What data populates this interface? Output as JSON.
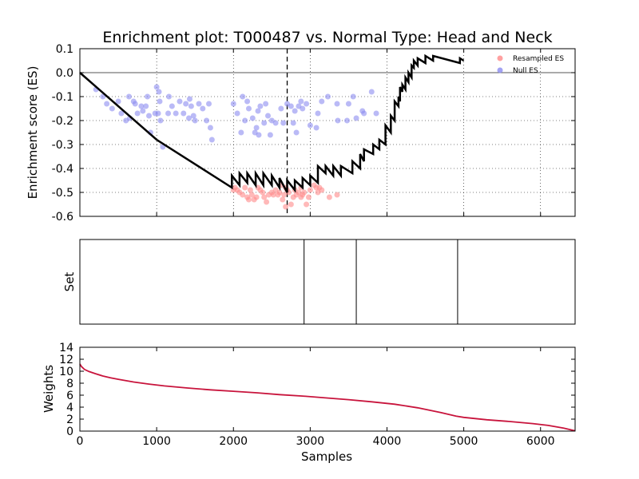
{
  "chart_data": [
    {
      "type": "line",
      "title": "Enrichment plot: T000487 vs. Normal Type: Head and Neck",
      "xlabel": "",
      "ylabel": "Enrichment score (ES)",
      "xlim": [
        0,
        6450
      ],
      "ylim": [
        -0.6,
        0.1
      ],
      "xticks": [
        1000,
        2000,
        3000,
        4000,
        5000,
        6000
      ],
      "yticks": [
        0.1,
        0.0,
        -0.1,
        -0.2,
        -0.3,
        -0.4,
        -0.5,
        -0.6
      ],
      "grid": true,
      "legend_position": "top-right",
      "legend": [
        {
          "label": "Resampled ES",
          "color": "#ff8a8a"
        },
        {
          "label": "Null ES",
          "color": "#8c8cf0"
        }
      ],
      "zero_line": 0.0,
      "max_deviation_x": 2700,
      "es_curve": {
        "x": [
          0,
          1000,
          1980,
          1980,
          2080,
          2080,
          2180,
          2180,
          2290,
          2290,
          2390,
          2390,
          2500,
          2500,
          2600,
          2600,
          2700,
          2700,
          2800,
          2800,
          2900,
          2900,
          3000,
          3000,
          3100,
          3100,
          3200,
          3200,
          3300,
          3300,
          3400,
          3400,
          3550,
          3550,
          3650,
          3650,
          3700,
          3700,
          3820,
          3820,
          3900,
          3900,
          3980,
          3980,
          4050,
          4050,
          4100,
          4100,
          4150,
          4150,
          4170,
          4170,
          4200,
          4200,
          4240,
          4240,
          4280,
          4280,
          4320,
          4320,
          4350,
          4350,
          4400,
          4400,
          4500,
          4500,
          4600,
          4600,
          4950,
          4950,
          5000
        ],
        "y": [
          0.0,
          -0.28,
          -0.48,
          -0.43,
          -0.47,
          -0.42,
          -0.46,
          -0.42,
          -0.47,
          -0.42,
          -0.47,
          -0.42,
          -0.47,
          -0.43,
          -0.48,
          -0.44,
          -0.5,
          -0.45,
          -0.49,
          -0.45,
          -0.48,
          -0.44,
          -0.47,
          -0.43,
          -0.46,
          -0.39,
          -0.42,
          -0.39,
          -0.43,
          -0.39,
          -0.43,
          -0.39,
          -0.42,
          -0.37,
          -0.4,
          -0.34,
          -0.37,
          -0.32,
          -0.34,
          -0.3,
          -0.32,
          -0.28,
          -0.3,
          -0.22,
          -0.25,
          -0.18,
          -0.2,
          -0.12,
          -0.14,
          -0.1,
          -0.12,
          -0.06,
          -0.08,
          -0.05,
          -0.07,
          -0.02,
          -0.04,
          0.0,
          -0.02,
          0.03,
          0.02,
          0.05,
          0.03,
          0.06,
          0.04,
          0.07,
          0.05,
          0.07,
          0.04,
          0.06,
          0.05
        ]
      },
      "null_es_points": [
        [
          210,
          -0.07
        ],
        [
          300,
          -0.1
        ],
        [
          350,
          -0.13
        ],
        [
          420,
          -0.15
        ],
        [
          500,
          -0.12
        ],
        [
          540,
          -0.17
        ],
        [
          600,
          -0.2
        ],
        [
          640,
          -0.1
        ],
        [
          650,
          -0.19
        ],
        [
          700,
          -0.12
        ],
        [
          720,
          -0.13
        ],
        [
          750,
          -0.17
        ],
        [
          800,
          -0.14
        ],
        [
          820,
          -0.16
        ],
        [
          860,
          -0.14
        ],
        [
          880,
          -0.1
        ],
        [
          900,
          -0.18
        ],
        [
          920,
          -0.25
        ],
        [
          980,
          -0.17
        ],
        [
          1000,
          -0.06
        ],
        [
          1020,
          -0.17
        ],
        [
          1030,
          -0.08
        ],
        [
          1040,
          -0.12
        ],
        [
          1050,
          -0.2
        ],
        [
          1080,
          -0.31
        ],
        [
          1150,
          -0.17
        ],
        [
          1160,
          -0.1
        ],
        [
          1200,
          -0.14
        ],
        [
          1250,
          -0.17
        ],
        [
          1300,
          -0.12
        ],
        [
          1350,
          -0.17
        ],
        [
          1380,
          -0.13
        ],
        [
          1420,
          -0.19
        ],
        [
          1430,
          -0.11
        ],
        [
          1450,
          -0.14
        ],
        [
          1480,
          -0.18
        ],
        [
          1500,
          -0.2
        ],
        [
          1550,
          -0.13
        ],
        [
          1600,
          -0.15
        ],
        [
          1650,
          -0.2
        ],
        [
          1680,
          -0.13
        ],
        [
          1700,
          -0.23
        ],
        [
          1720,
          -0.28
        ],
        [
          2000,
          -0.13
        ],
        [
          2050,
          -0.17
        ],
        [
          2100,
          -0.25
        ],
        [
          2120,
          -0.1
        ],
        [
          2150,
          -0.2
        ],
        [
          2180,
          -0.12
        ],
        [
          2200,
          -0.15
        ],
        [
          2250,
          -0.19
        ],
        [
          2280,
          -0.25
        ],
        [
          2300,
          -0.23
        ],
        [
          2320,
          -0.16
        ],
        [
          2330,
          -0.26
        ],
        [
          2350,
          -0.14
        ],
        [
          2400,
          -0.21
        ],
        [
          2420,
          -0.13
        ],
        [
          2450,
          -0.18
        ],
        [
          2480,
          -0.26
        ],
        [
          2500,
          -0.2
        ],
        [
          2550,
          -0.21
        ],
        [
          2620,
          -0.15
        ],
        [
          2650,
          -0.21
        ],
        [
          2700,
          -0.13
        ],
        [
          2750,
          -0.14
        ],
        [
          2780,
          -0.21
        ],
        [
          2800,
          -0.16
        ],
        [
          2820,
          -0.25
        ],
        [
          2850,
          -0.14
        ],
        [
          2880,
          -0.12
        ],
        [
          2900,
          -0.15
        ],
        [
          2950,
          -0.13
        ],
        [
          3000,
          -0.22
        ],
        [
          3080,
          -0.23
        ],
        [
          3100,
          -0.17
        ],
        [
          3150,
          -0.12
        ],
        [
          3230,
          -0.1
        ],
        [
          3350,
          -0.13
        ],
        [
          3360,
          -0.2
        ],
        [
          3480,
          -0.2
        ],
        [
          3500,
          -0.13
        ],
        [
          3560,
          -0.1
        ],
        [
          3600,
          -0.19
        ],
        [
          3680,
          -0.16
        ],
        [
          3700,
          -0.17
        ],
        [
          3800,
          -0.08
        ],
        [
          3860,
          -0.17
        ]
      ],
      "resampled_es_points": [
        [
          2000,
          -0.49
        ],
        [
          2020,
          -0.48
        ],
        [
          2050,
          -0.49
        ],
        [
          2080,
          -0.5
        ],
        [
          2120,
          -0.51
        ],
        [
          2150,
          -0.48
        ],
        [
          2180,
          -0.52
        ],
        [
          2200,
          -0.53
        ],
        [
          2220,
          -0.49
        ],
        [
          2240,
          -0.51
        ],
        [
          2270,
          -0.53
        ],
        [
          2300,
          -0.52
        ],
        [
          2320,
          -0.48
        ],
        [
          2350,
          -0.49
        ],
        [
          2380,
          -0.5
        ],
        [
          2400,
          -0.52
        ],
        [
          2430,
          -0.54
        ],
        [
          2460,
          -0.51
        ],
        [
          2500,
          -0.5
        ],
        [
          2520,
          -0.51
        ],
        [
          2550,
          -0.49
        ],
        [
          2580,
          -0.51
        ],
        [
          2600,
          -0.5
        ],
        [
          2620,
          -0.47
        ],
        [
          2640,
          -0.53
        ],
        [
          2660,
          -0.51
        ],
        [
          2680,
          -0.48
        ],
        [
          2700,
          -0.49
        ],
        [
          2720,
          -0.5
        ],
        [
          2750,
          -0.55
        ],
        [
          2780,
          -0.52
        ],
        [
          2800,
          -0.49
        ],
        [
          2820,
          -0.51
        ],
        [
          2850,
          -0.5
        ],
        [
          2880,
          -0.52
        ],
        [
          2900,
          -0.51
        ],
        [
          2920,
          -0.5
        ],
        [
          2950,
          -0.55
        ],
        [
          2980,
          -0.52
        ],
        [
          3000,
          -0.49
        ],
        [
          3050,
          -0.47
        ],
        [
          3080,
          -0.48
        ],
        [
          3100,
          -0.5
        ],
        [
          3120,
          -0.48
        ],
        [
          3150,
          -0.49
        ],
        [
          3250,
          -0.52
        ],
        [
          3350,
          -0.51
        ],
        [
          2680,
          -0.56
        ],
        [
          2880,
          -0.48
        ]
      ]
    },
    {
      "type": "rug",
      "ylabel": "Set",
      "xlim": [
        0,
        6450
      ],
      "set_positions": [
        2920,
        3600,
        4920
      ]
    },
    {
      "type": "line",
      "xlabel": "Samples",
      "ylabel": "Weights",
      "xlim": [
        0,
        6450
      ],
      "ylim": [
        0,
        14
      ],
      "xticks": [
        0,
        1000,
        2000,
        3000,
        4000,
        5000,
        6000
      ],
      "yticks": [
        0,
        2,
        4,
        6,
        8,
        10,
        12,
        14
      ],
      "color": "#c8143c",
      "x": [
        0,
        20,
        60,
        120,
        200,
        300,
        400,
        500,
        700,
        900,
        1100,
        1400,
        1700,
        2000,
        2300,
        2600,
        2900,
        3200,
        3500,
        3800,
        4100,
        4400,
        4700,
        4900,
        5000,
        5300,
        5600,
        5900,
        6100,
        6300,
        6400,
        6450
      ],
      "y": [
        11.2,
        10.8,
        10.3,
        9.95,
        9.6,
        9.2,
        8.9,
        8.65,
        8.2,
        7.85,
        7.55,
        7.2,
        6.9,
        6.65,
        6.4,
        6.1,
        5.85,
        5.55,
        5.25,
        4.9,
        4.5,
        3.9,
        3.1,
        2.5,
        2.3,
        1.9,
        1.6,
        1.25,
        0.95,
        0.5,
        0.2,
        0.05
      ]
    }
  ]
}
